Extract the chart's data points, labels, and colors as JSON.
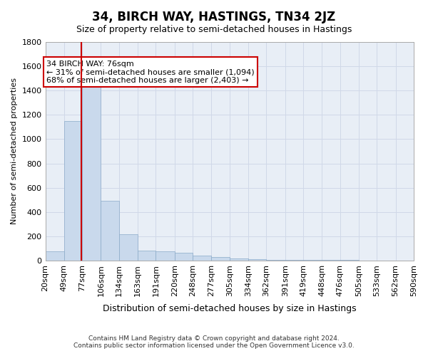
{
  "title": "34, BIRCH WAY, HASTINGS, TN34 2JZ",
  "subtitle": "Size of property relative to semi-detached houses in Hastings",
  "xlabel": "Distribution of semi-detached houses by size in Hastings",
  "ylabel": "Number of semi-detached properties",
  "footer_line1": "Contains HM Land Registry data © Crown copyright and database right 2024.",
  "footer_line2": "Contains public sector information licensed under the Open Government Licence v3.0.",
  "bar_color": "#c9d9ec",
  "bar_edge_color": "#8aaac8",
  "grid_color": "#d0d8e8",
  "background_color": "#e8eef6",
  "annotation_box_edge": "#cc0000",
  "vline_color": "#cc0000",
  "property_size": 76,
  "property_label": "34 BIRCH WAY: 76sqm",
  "pct_smaller": 31,
  "count_smaller": 1094,
  "pct_larger": 68,
  "count_larger": 2403,
  "bins": [
    20,
    49,
    77,
    106,
    134,
    163,
    191,
    220,
    248,
    277,
    305,
    334,
    362,
    391,
    419,
    448,
    476,
    505,
    533,
    562,
    590
  ],
  "bin_labels": [
    "20sqm",
    "49sqm",
    "77sqm",
    "106sqm",
    "134sqm",
    "163sqm",
    "191sqm",
    "220sqm",
    "248sqm",
    "277sqm",
    "305sqm",
    "334sqm",
    "362sqm",
    "391sqm",
    "419sqm",
    "448sqm",
    "476sqm",
    "505sqm",
    "533sqm",
    "562sqm",
    "590sqm"
  ],
  "counts": [
    75,
    1150,
    1430,
    490,
    215,
    80,
    75,
    65,
    40,
    28,
    18,
    10,
    8,
    5,
    4,
    3,
    3,
    2,
    2,
    2
  ],
  "ylim": [
    0,
    1800
  ],
  "yticks": [
    0,
    200,
    400,
    600,
    800,
    1000,
    1200,
    1400,
    1600,
    1800
  ]
}
